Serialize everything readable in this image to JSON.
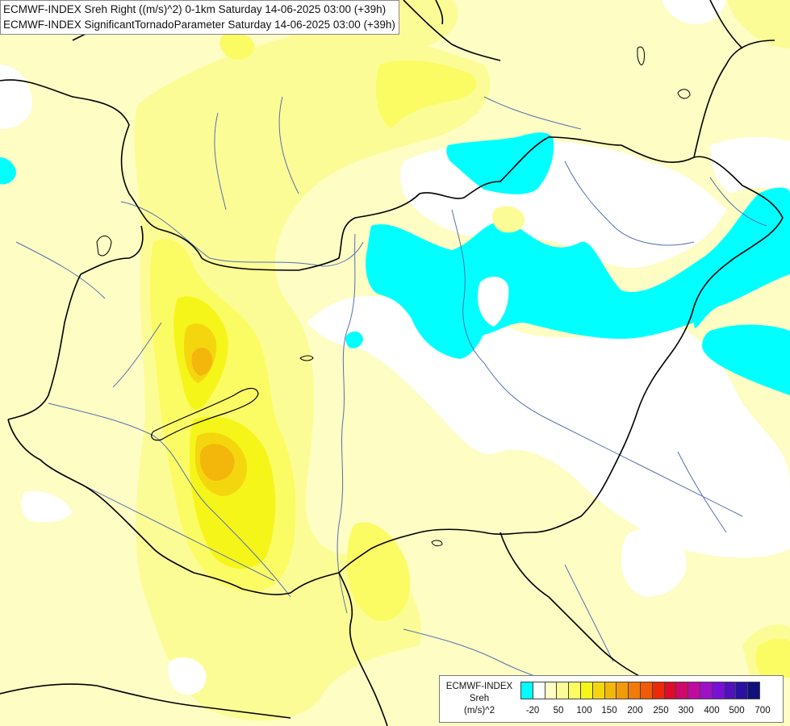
{
  "header": {
    "line1": "ECMWF-INDEX Sreh Right ((m/s)^2) 0-1km Saturday 14-06-2025 03:00 (+39h)",
    "line2": "ECMWF-INDEX SignificantTornadoParameter Saturday 14-06-2025 03:00 (+39h)"
  },
  "legend": {
    "title": "ECMWF-INDEX",
    "variable": "Sreh",
    "unit": "(m/s)^2",
    "colors": [
      "#00ffff",
      "#ffffff",
      "#fdfdc4",
      "#fcfc96",
      "#fbfb64",
      "#f5f51a",
      "#f4d60f",
      "#f3b60a",
      "#f29a08",
      "#f27a08",
      "#f05a08",
      "#ec2a08",
      "#e00a2a",
      "#d0086a",
      "#c00aa0",
      "#a010c8",
      "#7a10d8",
      "#5010c0",
      "#2a10a0",
      "#10107a"
    ],
    "ticks": [
      "-20",
      "50",
      "100",
      "150",
      "200",
      "250",
      "300",
      "400",
      "500",
      "700"
    ]
  },
  "palette": {
    "cyan": "#00ffff",
    "white": "#ffffff",
    "pale_yellow": "#fdfdc4",
    "light_yellow": "#fcfc96",
    "yellow": "#fbfb64",
    "bright_yellow": "#f5f51a",
    "gold": "#f4d60f",
    "orange": "#f3b60a",
    "border": "#000000",
    "river": "#5470b0"
  }
}
